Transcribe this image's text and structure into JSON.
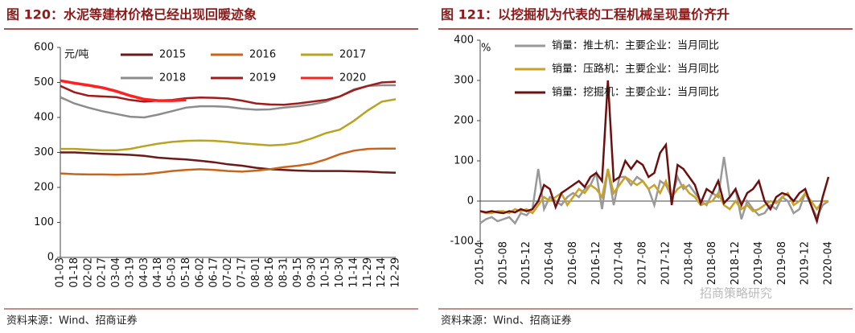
{
  "chart_data": [
    {
      "type": "line",
      "title": "图 120：水泥等建材价格已经出现回暖迹象",
      "unit": "元/吨",
      "source": "资料来源：Wind、招商证券",
      "categories": [
        "01-03",
        "01-18",
        "02-02",
        "02-17",
        "03-04",
        "03-19",
        "04-03",
        "04-18",
        "05-03",
        "05-18",
        "06-02",
        "06-17",
        "07-02",
        "07-17",
        "08-01",
        "08-16",
        "08-31",
        "09-15",
        "09-30",
        "10-15",
        "10-30",
        "11-14",
        "11-29",
        "12-14",
        "12-29"
      ],
      "ylim": [
        0,
        600
      ],
      "yticks": [
        0,
        100,
        200,
        300,
        400,
        500,
        600
      ],
      "series": [
        {
          "name": "2015",
          "color": "#6b1a1a",
          "values": [
            300,
            300,
            298,
            296,
            295,
            293,
            290,
            285,
            282,
            280,
            276,
            272,
            266,
            262,
            256,
            252,
            250,
            248,
            247,
            247,
            247,
            246,
            245,
            243,
            242
          ]
        },
        {
          "name": "2016",
          "color": "#c8651b",
          "values": [
            240,
            238,
            237,
            237,
            236,
            237,
            238,
            242,
            247,
            250,
            252,
            250,
            247,
            245,
            248,
            252,
            258,
            262,
            268,
            280,
            295,
            305,
            310,
            311,
            311
          ]
        },
        {
          "name": "2017",
          "color": "#b8a323",
          "values": [
            310,
            310,
            308,
            306,
            306,
            310,
            318,
            325,
            330,
            333,
            334,
            333,
            330,
            326,
            323,
            320,
            322,
            328,
            340,
            355,
            365,
            390,
            420,
            445,
            452
          ]
        },
        {
          "name": "2018",
          "color": "#8c8c8c",
          "values": [
            458,
            440,
            428,
            418,
            410,
            402,
            400,
            408,
            418,
            428,
            432,
            432,
            430,
            425,
            422,
            423,
            428,
            432,
            437,
            445,
            460,
            480,
            490,
            492,
            492
          ]
        },
        {
          "name": "2019",
          "color": "#a01c1c",
          "values": [
            490,
            472,
            462,
            460,
            458,
            450,
            445,
            448,
            450,
            455,
            457,
            456,
            454,
            448,
            440,
            437,
            436,
            440,
            445,
            450,
            460,
            478,
            490,
            500,
            502
          ]
        },
        {
          "name": "2020",
          "color": "#ff2020",
          "values": [
            505,
            498,
            492,
            485,
            475,
            462,
            452,
            448,
            448,
            450,
            null,
            null,
            null,
            null,
            null,
            null,
            null,
            null,
            null,
            null,
            null,
            null,
            null,
            null,
            null
          ]
        }
      ]
    },
    {
      "type": "line",
      "title": "图 121：以挖掘机为代表的工程机械呈现量价齐升",
      "unit": "%",
      "source": "资料来源：Wind、招商证券",
      "watermark": "招商策略研究",
      "categories": [
        "2015-04",
        null,
        null,
        null,
        "2015-08",
        null,
        null,
        null,
        "2015-12",
        null,
        null,
        null,
        "2016-04",
        null,
        null,
        null,
        "2016-08",
        null,
        null,
        null,
        "2016-12",
        null,
        null,
        null,
        "2017-04",
        null,
        null,
        null,
        "2017-08",
        null,
        null,
        null,
        "2017-12",
        null,
        null,
        null,
        "2018-04",
        null,
        null,
        null,
        "2018-08",
        null,
        null,
        null,
        "2018-12",
        null,
        null,
        null,
        "2019-04",
        null,
        null,
        null,
        "2019-08",
        null,
        null,
        null,
        "2019-12",
        null,
        null,
        null,
        "2020-04"
      ],
      "ylim": [
        -100,
        400
      ],
      "yticks": [
        -100,
        0,
        100,
        200,
        300,
        400
      ],
      "series": [
        {
          "name": "销量：推土机：主要企业：当月同比",
          "color": "#999999",
          "values": [
            -55,
            -45,
            -40,
            -50,
            -45,
            -40,
            -55,
            -30,
            -35,
            -20,
            80,
            -20,
            10,
            0,
            -10,
            10,
            20,
            10,
            30,
            40,
            70,
            -20,
            80,
            -10,
            60,
            60,
            40,
            60,
            50,
            30,
            -10,
            50,
            40,
            10,
            60,
            30,
            40,
            20,
            0,
            -10,
            20,
            10,
            110,
            10,
            30,
            -45,
            0,
            -20,
            -35,
            -30,
            -10,
            -20,
            10,
            0,
            -30,
            -20,
            20,
            -10,
            -40,
            -10,
            0
          ]
        },
        {
          "name": "销量：压路机：主要企业：当月同比",
          "color": "#c9a227",
          "values": [
            -25,
            -30,
            -30,
            -25,
            -25,
            -30,
            -20,
            -25,
            -20,
            -30,
            -10,
            10,
            0,
            10,
            20,
            -10,
            10,
            30,
            20,
            40,
            30,
            10,
            80,
            20,
            40,
            60,
            50,
            40,
            50,
            30,
            40,
            20,
            50,
            10,
            30,
            40,
            20,
            10,
            -10,
            -5,
            0,
            20,
            -10,
            -20,
            0,
            -20,
            -10,
            -25,
            -20,
            -10,
            0,
            -5,
            10,
            20,
            -10,
            0,
            20,
            0,
            -20,
            0,
            0
          ]
        },
        {
          "name": "销量：挖掘机：主要企业：当月同比",
          "color": "#6b0f0f",
          "values": [
            -25,
            -28,
            -25,
            -28,
            -30,
            -25,
            -28,
            -20,
            -25,
            -20,
            0,
            40,
            30,
            -15,
            20,
            30,
            40,
            50,
            35,
            60,
            70,
            50,
            300,
            50,
            60,
            100,
            80,
            100,
            90,
            60,
            70,
            120,
            140,
            -10,
            90,
            80,
            60,
            40,
            -5,
            30,
            20,
            50,
            -5,
            10,
            30,
            -10,
            20,
            30,
            50,
            0,
            -20,
            10,
            20,
            15,
            0,
            20,
            30,
            -10,
            -50,
            10,
            60
          ]
        }
      ]
    }
  ]
}
